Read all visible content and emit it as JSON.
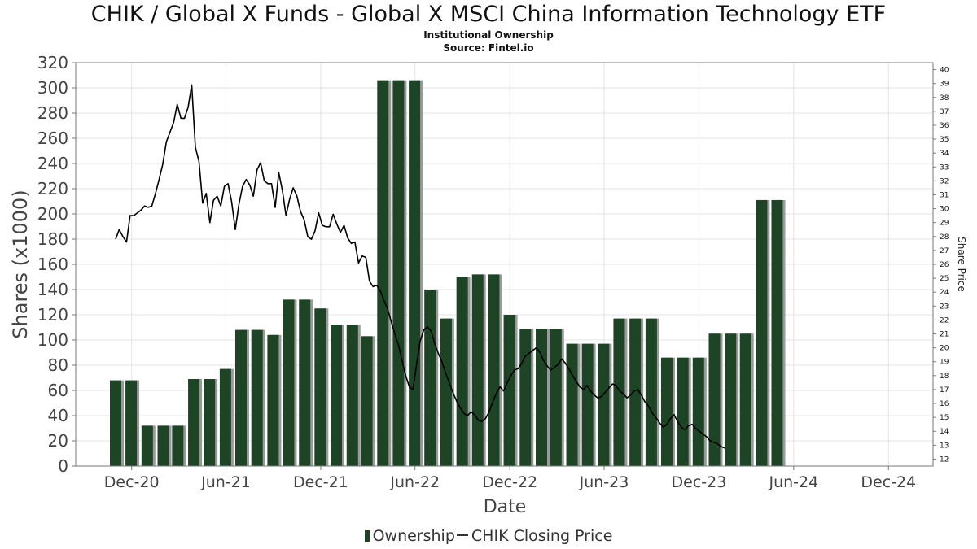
{
  "chart_data": {
    "type": "bar",
    "title": "CHIK / Global X Funds - Global X MSCI China Information Technology ETF",
    "subtitle": "Institutional Ownership",
    "source": "Source: Fintel.io",
    "xlabel": "Date",
    "ylabel": "Shares (x1000)",
    "y2label": "Share Price",
    "ylim": [
      0,
      320
    ],
    "yticks": [
      0,
      20,
      40,
      60,
      80,
      100,
      120,
      140,
      160,
      180,
      200,
      220,
      240,
      260,
      280,
      300,
      320
    ],
    "y2lim": [
      11.5,
      40.5
    ],
    "y2ticks": [
      12,
      13,
      14,
      15,
      16,
      17,
      18,
      19,
      20,
      21,
      22,
      23,
      24,
      25,
      26,
      27,
      28,
      29,
      30,
      31,
      32,
      33,
      34,
      35,
      36,
      37,
      38,
      39,
      40
    ],
    "xlim": [
      "2020-08-15",
      "2025-02-25"
    ],
    "xticks": [
      {
        "date": "2020-12-01",
        "label": "Dec-20"
      },
      {
        "date": "2021-06-01",
        "label": "Jun-21"
      },
      {
        "date": "2021-12-01",
        "label": "Dec-21"
      },
      {
        "date": "2022-06-01",
        "label": "Jun-22"
      },
      {
        "date": "2022-12-01",
        "label": "Dec-22"
      },
      {
        "date": "2023-06-01",
        "label": "Jun-23"
      },
      {
        "date": "2023-12-01",
        "label": "Dec-23"
      },
      {
        "date": "2024-06-01",
        "label": "Jun-24"
      },
      {
        "date": "2024-12-01",
        "label": "Dec-24"
      }
    ],
    "grid": true,
    "legend_position": "bottom",
    "series": [
      {
        "name": "Ownership",
        "type": "bar",
        "color": "#1c4425",
        "x": [
          "2020-10-31",
          "2020-11-30",
          "2020-12-31",
          "2021-01-31",
          "2021-02-28",
          "2021-03-31",
          "2021-04-30",
          "2021-05-31",
          "2021-06-30",
          "2021-07-31",
          "2021-08-31",
          "2021-09-30",
          "2021-10-31",
          "2021-11-30",
          "2021-12-31",
          "2022-01-31",
          "2022-02-28",
          "2022-03-31",
          "2022-04-30",
          "2022-05-31",
          "2022-06-30",
          "2022-07-31",
          "2022-08-31",
          "2022-09-30",
          "2022-10-31",
          "2022-11-30",
          "2022-12-31",
          "2023-01-31",
          "2023-02-28",
          "2023-03-31",
          "2023-04-30",
          "2023-05-31",
          "2023-06-30",
          "2023-07-31",
          "2023-08-31",
          "2023-09-30",
          "2023-10-31",
          "2023-11-30",
          "2023-12-31",
          "2024-01-31",
          "2024-02-29",
          "2024-03-31",
          "2024-04-30"
        ],
        "values": [
          68,
          68,
          32,
          32,
          32,
          69,
          69,
          77,
          108,
          108,
          104,
          132,
          132,
          125,
          112,
          112,
          103,
          306,
          306,
          306,
          140,
          117,
          150,
          152,
          152,
          120,
          109,
          109,
          109,
          97,
          97,
          97,
          117,
          117,
          117,
          86,
          86,
          86,
          105,
          105,
          105,
          211,
          211
        ]
      },
      {
        "name": "CHIK Closing Price",
        "type": "line",
        "axis": "right",
        "color": "#000000",
        "x": [
          "2020-10-31",
          "2020-11-07",
          "2020-11-14",
          "2020-11-21",
          "2020-11-28",
          "2020-12-05",
          "2020-12-12",
          "2020-12-19",
          "2020-12-26",
          "2021-01-02",
          "2021-01-09",
          "2021-01-16",
          "2021-01-23",
          "2021-01-30",
          "2021-02-06",
          "2021-02-13",
          "2021-02-20",
          "2021-02-27",
          "2021-03-06",
          "2021-03-13",
          "2021-03-20",
          "2021-03-27",
          "2021-04-03",
          "2021-04-10",
          "2021-04-17",
          "2021-04-24",
          "2021-05-01",
          "2021-05-08",
          "2021-05-15",
          "2021-05-22",
          "2021-05-29",
          "2021-06-05",
          "2021-06-12",
          "2021-06-19",
          "2021-06-26",
          "2021-07-03",
          "2021-07-10",
          "2021-07-17",
          "2021-07-24",
          "2021-07-31",
          "2021-08-07",
          "2021-08-14",
          "2021-08-21",
          "2021-08-28",
          "2021-09-04",
          "2021-09-11",
          "2021-09-18",
          "2021-09-25",
          "2021-10-02",
          "2021-10-09",
          "2021-10-16",
          "2021-10-23",
          "2021-10-30",
          "2021-11-06",
          "2021-11-13",
          "2021-11-20",
          "2021-11-27",
          "2021-12-04",
          "2021-12-11",
          "2021-12-18",
          "2021-12-25",
          "2022-01-01",
          "2022-01-08",
          "2022-01-15",
          "2022-01-22",
          "2022-01-29",
          "2022-02-05",
          "2022-02-12",
          "2022-02-19",
          "2022-02-26",
          "2022-03-05",
          "2022-03-12",
          "2022-03-19",
          "2022-03-26",
          "2022-04-02",
          "2022-04-09",
          "2022-04-16",
          "2022-04-23",
          "2022-04-30",
          "2022-05-07",
          "2022-05-14",
          "2022-05-21",
          "2022-05-28",
          "2022-06-04",
          "2022-06-11",
          "2022-06-18",
          "2022-06-25",
          "2022-07-02",
          "2022-07-09",
          "2022-07-16",
          "2022-07-23",
          "2022-07-30",
          "2022-08-06",
          "2022-08-13",
          "2022-08-20",
          "2022-08-27",
          "2022-09-03",
          "2022-09-10",
          "2022-09-17",
          "2022-09-24",
          "2022-10-01",
          "2022-10-08",
          "2022-10-15",
          "2022-10-22",
          "2022-10-29",
          "2022-11-05",
          "2022-11-12",
          "2022-11-19",
          "2022-11-26",
          "2022-12-03",
          "2022-12-10",
          "2022-12-17",
          "2022-12-24",
          "2022-12-31",
          "2023-01-07",
          "2023-01-14",
          "2023-01-21",
          "2023-01-28",
          "2023-02-04",
          "2023-02-11",
          "2023-02-18",
          "2023-02-25",
          "2023-03-04",
          "2023-03-11",
          "2023-03-18",
          "2023-03-25",
          "2023-04-01",
          "2023-04-08",
          "2023-04-15",
          "2023-04-22",
          "2023-04-29",
          "2023-05-06",
          "2023-05-13",
          "2023-05-20",
          "2023-05-27",
          "2023-06-03",
          "2023-06-10",
          "2023-06-17",
          "2023-06-24",
          "2023-07-01",
          "2023-07-08",
          "2023-07-15",
          "2023-07-22",
          "2023-07-29",
          "2023-08-05",
          "2023-08-12",
          "2023-08-19",
          "2023-08-26",
          "2023-09-02",
          "2023-09-09",
          "2023-09-16",
          "2023-09-23",
          "2023-09-30",
          "2023-10-07",
          "2023-10-14",
          "2023-10-21",
          "2023-10-28",
          "2023-11-04",
          "2023-11-11",
          "2023-11-18",
          "2023-11-25",
          "2023-12-02",
          "2023-12-09",
          "2023-12-16",
          "2023-12-23",
          "2023-12-30",
          "2024-01-06",
          "2024-01-13",
          "2024-01-20"
        ],
        "values": [
          27.8,
          28.5,
          28.0,
          27.6,
          29.5,
          29.5,
          29.7,
          29.9,
          30.2,
          30.1,
          30.2,
          31.1,
          32.1,
          33.2,
          34.8,
          35.5,
          36.2,
          37.5,
          36.5,
          36.5,
          37.3,
          38.9,
          34.4,
          33.4,
          30.4,
          31.1,
          29.0,
          30.6,
          30.9,
          30.2,
          31.6,
          31.8,
          30.5,
          28.5,
          30.3,
          31.6,
          32.1,
          31.7,
          30.9,
          32.8,
          33.3,
          32.0,
          31.8,
          31.8,
          30.1,
          32.6,
          31.3,
          29.5,
          30.7,
          31.5,
          30.9,
          29.8,
          29.2,
          28.0,
          27.8,
          28.4,
          29.7,
          28.8,
          28.7,
          28.7,
          29.6,
          28.9,
          28.3,
          28.8,
          27.9,
          27.5,
          27.6,
          26.1,
          26.6,
          26.5,
          24.8,
          24.4,
          24.5,
          24.1,
          23.4,
          22.8,
          21.9,
          21.0,
          20.2,
          19.1,
          18.0,
          17.2,
          17.0,
          18.8,
          20.5,
          21.3,
          21.5,
          21.2,
          20.3,
          19.6,
          19.0,
          18.2,
          17.5,
          16.8,
          16.2,
          15.7,
          15.3,
          15.1,
          15.4,
          15.2,
          14.8,
          14.7,
          14.9,
          15.4,
          16.1,
          16.7,
          17.2,
          16.9,
          17.5,
          18.0,
          18.4,
          18.5,
          18.9,
          19.4,
          19.6,
          19.8,
          20.0,
          19.7,
          19.1,
          18.7,
          18.4,
          18.6,
          18.8,
          19.2,
          18.9,
          18.5,
          18.0,
          17.6,
          17.2,
          17.0,
          17.3,
          16.9,
          16.6,
          16.4,
          16.5,
          16.8,
          17.1,
          17.4,
          17.3,
          16.9,
          16.7,
          16.4,
          16.6,
          16.9,
          17.0,
          16.6,
          16.1,
          15.8,
          15.3,
          15.0,
          14.6,
          14.3,
          14.5,
          14.9,
          15.2,
          14.7,
          14.3,
          14.1,
          14.4,
          14.5,
          14.2,
          14.0,
          13.8,
          13.6,
          13.3,
          13.2,
          13.1,
          12.9,
          12.8
        ]
      }
    ]
  }
}
